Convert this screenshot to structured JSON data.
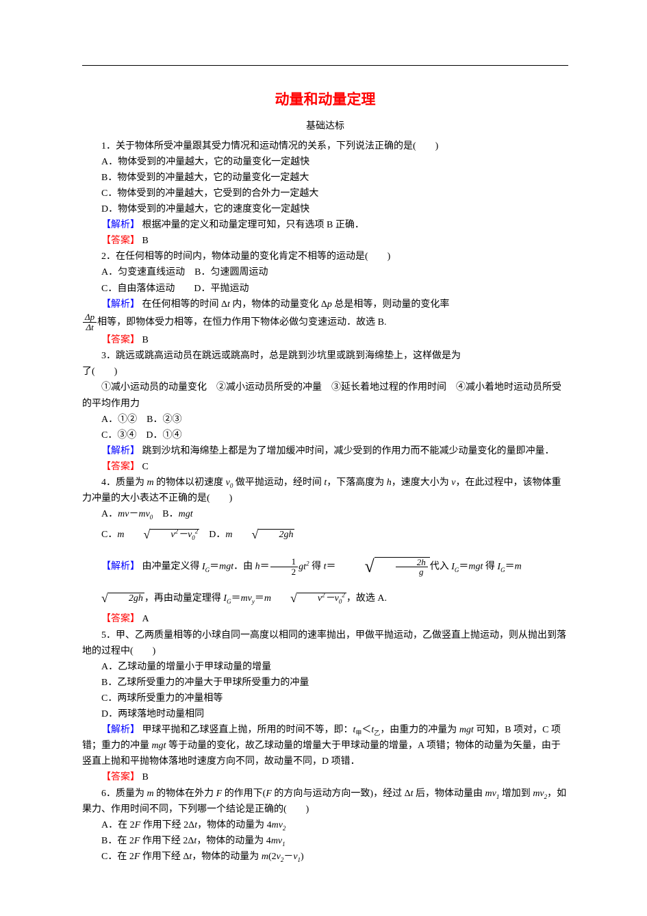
{
  "colors": {
    "title": "#ff0000",
    "answer_label": "#ff0000",
    "analysis_label": "#0000ff",
    "body_text": "#000000",
    "background": "#ffffff"
  },
  "typography": {
    "title_fontsize": 21,
    "body_fontsize": 14,
    "font_family": "SimSun"
  },
  "title": "动量和动量定理",
  "subtitle": "基础达标",
  "label": {
    "analysis": "【解析】",
    "answer": "【答案】"
  },
  "q1": {
    "stem": "1．关于物体所受冲量跟其受力情况和运动情况的关系，下列说法正确的是(　　)",
    "A": "A．物体受到的冲量越大，它的动量变化一定越快",
    "B": "B．物体受到的冲量越大，它的动量变化一定越大",
    "C": "C．物体受到的冲量越大，它受到的合外力一定越大",
    "D": "D．物体受到的冲量越大，它的速度变化一定越快",
    "analysis": " 根据冲量的定义和动量定理可知，只有选项 B 正确．",
    "answer": " B"
  },
  "q2": {
    "stem": "2．在任何相等的时间内，物体动量的变化肯定不相等的运动是(　　)",
    "lineAB": "A．匀变速直线运动　B．匀速圆周运动",
    "lineCD": "C．自由落体运动　　D．平抛运动",
    "analysis_p1_a": " 在任何相等的时间 Δ",
    "analysis_p1_b": " 内，物体的动量变化 Δ",
    "analysis_p1_c": " 总是相等，则动量的变化率",
    "analysis_p2": "相等，即物体受力相等，在恒力作用下物体必做匀变速运动．故选 B.",
    "frac_num": "Δp",
    "frac_den": "Δt",
    "answer": " B"
  },
  "q3": {
    "stem_a": "3．跳远或跳高运动员在跳远或跳高时，总是跳到沙坑里或跳到海绵垫上，这样做是为",
    "stem_b": "了(　　)",
    "circles": "①减小运动员的动量变化　②减小运动员所受的冲量　③延长着地过程的作用时间　④减小着地时运动员所受的平均作用力",
    "lineAB": "A．①②　B．②③",
    "lineCD": "C．③④　D．①④",
    "analysis": " 跳到沙坑和海绵垫上都是为了增加缓冲时间，减少受到的作用力而不能减少动量变化的量即冲量．",
    "answer": " C"
  },
  "q4": {
    "stem_a": "4．质量为 ",
    "stem_b": " 的物体以初速度 ",
    "stem_c": " 做平抛运动，经时间 ",
    "stem_d": "，下落高度为 ",
    "stem_e": "，速度大小为 ",
    "stem_f": "，在此过程中，该物体重力冲量的大小表达不正确的是(　　)",
    "A_a": "A．",
    "A_b": "－",
    "B_a": "　B．",
    "C_a": "C．",
    "D_a": "　D．",
    "analysis_a": " 由冲量定义得 ",
    "analysis_b": "．由 ",
    "analysis_c": " 得 ",
    "analysis_d": "代入 ",
    "analysis_e": " 得 ",
    "analysis_f": "，再由动量定理得 ",
    "analysis_g": "，故选 A.",
    "answer": " A"
  },
  "q5": {
    "stem": "5．甲、乙两质量相等的小球自同一高度以相同的速率抛出，甲做平抛运动，乙做竖直上抛运动，则从抛出到落地的过程中(　　)",
    "A": "A．乙球动量的增量小于甲球动量的增量",
    "B": "B．乙球所受重力的冲量大于甲球所受重力的冲量",
    "C": "C．两球所受重力的冲量相等",
    "D": "D．两球落地时动量相同",
    "analysis_a": " 甲球平抛和乙球竖直上抛，所用的时间不等，即：",
    "analysis_b": "＜",
    "analysis_c": "，由重力的冲量为",
    "analysis_d": " 可知，B 项对，C 项错；重力的冲量 ",
    "analysis_e": " 等于动量的变化，故乙球动量的增量大于甲球动量的增量，A 项错；物体的动量为矢量，由于竖直上抛和平抛物体落地时速度方向不同，故动量不同，D 项错．",
    "answer": " B"
  },
  "q6": {
    "stem_a": "6．质量为 ",
    "stem_b": " 的物体在外力 ",
    "stem_c": " 的作用下(",
    "stem_d": " 的方向与运动方向一致)，经过 Δ",
    "stem_e": " 后，物体动量由 ",
    "stem_f": " 增加到 ",
    "stem_g": "，如果力、作用时间不同，下列哪一个结论是正确的(　　)",
    "A_a": "A．在 2",
    "A_b": " 作用下经 2Δ",
    "A_c": "，物体的动量为 4",
    "B_a": "B．在 2",
    "B_b": " 作用下经 2Δ",
    "B_c": "，物体的动量为 4",
    "C_a": "C．在 2",
    "C_b": " 作用下经 Δ",
    "C_c": "，物体的动量为 ",
    "C_d": "(2",
    "C_e": "－",
    "C_f": ")"
  }
}
